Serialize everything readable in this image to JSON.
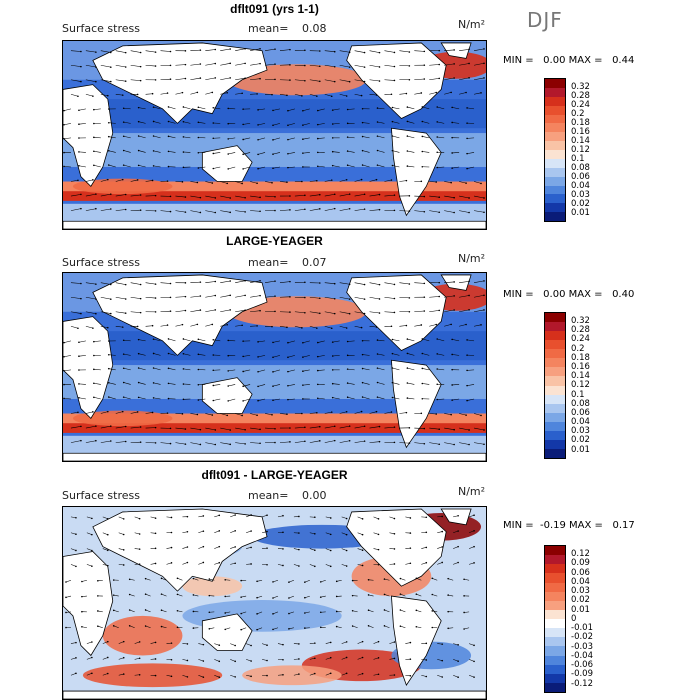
{
  "season": "DJF",
  "panels": [
    {
      "title": "dflt091 (yrs 1-1)",
      "variable": "Surface stress",
      "mean_label": "mean=",
      "mean": "0.08",
      "units": "N/m²",
      "min_label": "MIN =",
      "min": "0.00",
      "max_label": "MAX =",
      "max": "0.44",
      "colorbar": {
        "ticks": [
          "0.32",
          "0.28",
          "0.24",
          "0.2",
          "0.18",
          "0.16",
          "0.14",
          "0.12",
          "0.1",
          "0.08",
          "0.06",
          "0.04",
          "0.03",
          "0.02",
          "0.01"
        ],
        "colors": [
          "#8b0000",
          "#b2182b",
          "#d6301c",
          "#e8502e",
          "#f06a45",
          "#f4845f",
          "#f7a07f",
          "#f9c3a6",
          "#fbe3d2",
          "#d7e5f7",
          "#a9c6ef",
          "#7ba7e6",
          "#4f85dc",
          "#2a60cc",
          "#1338a8",
          "#0a1c78"
        ]
      }
    },
    {
      "title": "LARGE-YEAGER",
      "variable": "Surface stress",
      "mean_label": "mean=",
      "mean": "0.07",
      "units": "N/m²",
      "min_label": "MIN =",
      "min": "0.00",
      "max_label": "MAX =",
      "max": "0.40",
      "colorbar": {
        "ticks": [
          "0.32",
          "0.28",
          "0.24",
          "0.2",
          "0.18",
          "0.16",
          "0.14",
          "0.12",
          "0.1",
          "0.08",
          "0.06",
          "0.04",
          "0.03",
          "0.02",
          "0.01"
        ],
        "colors": [
          "#8b0000",
          "#b2182b",
          "#d6301c",
          "#e8502e",
          "#f06a45",
          "#f4845f",
          "#f7a07f",
          "#f9c3a6",
          "#fbe3d2",
          "#d7e5f7",
          "#a9c6ef",
          "#7ba7e6",
          "#4f85dc",
          "#2a60cc",
          "#1338a8",
          "#0a1c78"
        ]
      }
    },
    {
      "title": "dflt091 - LARGE-YEAGER",
      "variable": "Surface stress",
      "mean_label": "mean=",
      "mean": "0.00",
      "units": "N/m²",
      "min_label": "MIN =",
      "min": "-0.19",
      "max_label": "MAX =",
      "max": "0.17",
      "colorbar": {
        "ticks": [
          "0.12",
          "0.09",
          "0.06",
          "0.04",
          "0.03",
          "0.02",
          "0.01",
          "0",
          "-0.01",
          "-0.02",
          "-0.03",
          "-0.04",
          "-0.06",
          "-0.09",
          "-0.12"
        ],
        "colors": [
          "#8b0000",
          "#b2182b",
          "#d6301c",
          "#e8502e",
          "#f06a45",
          "#f4845f",
          "#f7a07f",
          "#fbe3d2",
          "#ffffff",
          "#d7e5f7",
          "#a9c6ef",
          "#7ba7e6",
          "#4f85dc",
          "#2a60cc",
          "#1338a8",
          "#0a1c78"
        ]
      }
    }
  ]
}
